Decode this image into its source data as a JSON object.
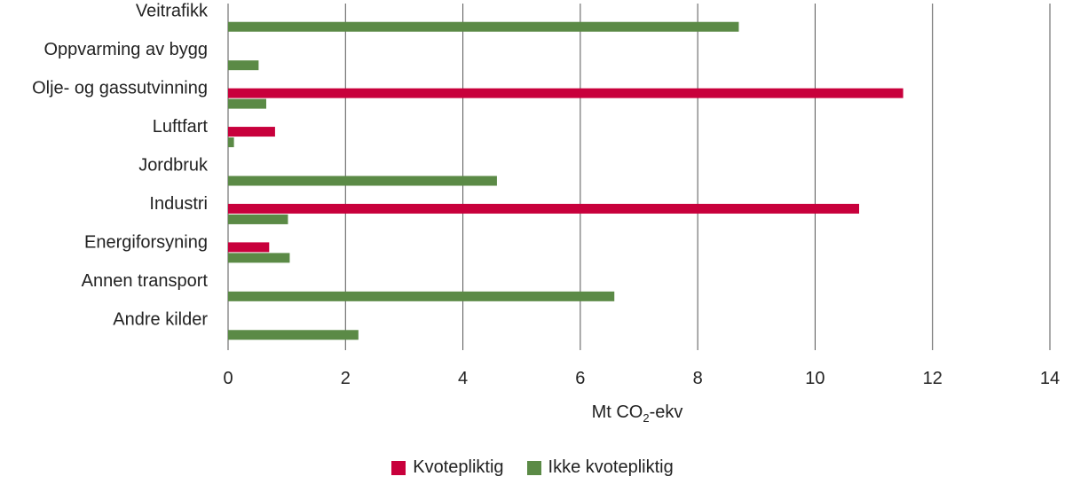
{
  "chart_data": {
    "type": "bar",
    "orientation": "horizontal",
    "categories": [
      "Veitrafikk",
      "Oppvarming av bygg",
      "Olje- og gassutvinning",
      "Luftfart",
      "Jordbruk",
      "Industri",
      "Energiforsyning",
      "Annen transport",
      "Andre kilder"
    ],
    "series": [
      {
        "name": "Kvotepliktig",
        "color": "#c8003c",
        "values": [
          0,
          0,
          11.5,
          0.8,
          0,
          10.75,
          0.7,
          0,
          0
        ]
      },
      {
        "name": "Ikke kvotepliktig",
        "color": "#5b8a46",
        "values": [
          8.7,
          0.52,
          0.65,
          0.1,
          4.58,
          1.02,
          1.05,
          6.58,
          2.22
        ]
      }
    ],
    "xlabel_prefix": "Mt CO",
    "xlabel_subscript": "2",
    "xlabel_suffix": "-ekv",
    "xlim": [
      0,
      14
    ],
    "xticks": [
      "0",
      "2",
      "4",
      "6",
      "8",
      "10",
      "12",
      "14"
    ],
    "grid": true,
    "gridline_color": "#555555",
    "legend_position": "bottom-center"
  }
}
